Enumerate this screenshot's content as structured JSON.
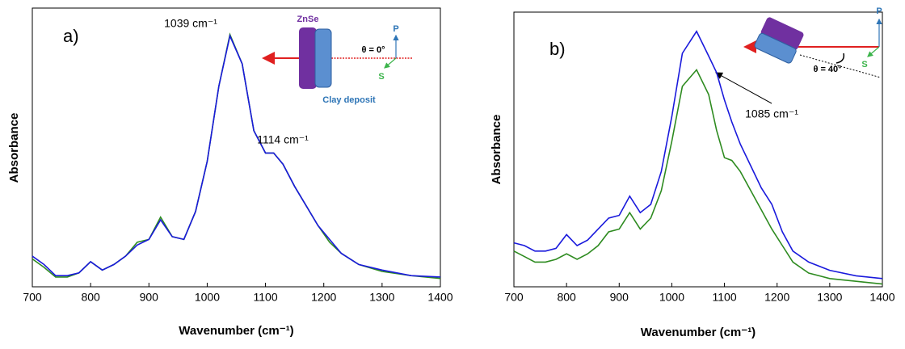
{
  "chart_data": [
    {
      "type": "line",
      "panel_label": "a)",
      "xlabel": "Wavenumber (cm⁻¹)",
      "ylabel": "Absorbance",
      "annotations": [
        "1039 cm⁻¹",
        "1114 cm⁻¹"
      ],
      "inset_labels": [
        "ZnSe",
        "θ = 0°",
        "P",
        "S",
        "Clay deposit"
      ],
      "x": [
        700,
        720,
        740,
        760,
        780,
        800,
        820,
        840,
        860,
        880,
        900,
        920,
        940,
        960,
        980,
        1000,
        1020,
        1039,
        1060,
        1080,
        1100,
        1114,
        1130,
        1150,
        1170,
        1190,
        1210,
        1230,
        1260,
        1300,
        1350,
        1400
      ],
      "xlim": [
        700,
        1400
      ],
      "xticks": [
        700,
        800,
        900,
        1000,
        1100,
        1200,
        1300,
        1400
      ],
      "ylim": [
        0,
        1
      ],
      "series": [
        {
          "color": "#2e8b20",
          "values": [
            0.1,
            0.07,
            0.035,
            0.035,
            0.05,
            0.09,
            0.06,
            0.08,
            0.11,
            0.16,
            0.17,
            0.25,
            0.18,
            0.17,
            0.27,
            0.45,
            0.72,
            0.905,
            0.8,
            0.56,
            0.48,
            0.48,
            0.44,
            0.36,
            0.29,
            0.22,
            0.16,
            0.12,
            0.08,
            0.055,
            0.04,
            0.03
          ]
        },
        {
          "color": "#1a1adc",
          "values": [
            0.11,
            0.08,
            0.04,
            0.04,
            0.05,
            0.09,
            0.06,
            0.08,
            0.11,
            0.15,
            0.17,
            0.24,
            0.18,
            0.17,
            0.27,
            0.45,
            0.72,
            0.9,
            0.8,
            0.56,
            0.48,
            0.48,
            0.44,
            0.36,
            0.29,
            0.22,
            0.17,
            0.12,
            0.08,
            0.06,
            0.04,
            0.035
          ]
        }
      ]
    },
    {
      "type": "line",
      "panel_label": "b)",
      "xlabel": "Wavenumber (cm⁻¹)",
      "ylabel": "Absorbance",
      "annotations": [
        "1085 cm⁻¹"
      ],
      "inset_labels": [
        "θ = 40°",
        "P",
        "S"
      ],
      "x": [
        700,
        720,
        740,
        760,
        780,
        800,
        820,
        840,
        860,
        880,
        900,
        920,
        940,
        960,
        980,
        1000,
        1020,
        1047,
        1070,
        1085,
        1100,
        1114,
        1130,
        1150,
        1170,
        1190,
        1210,
        1230,
        1260,
        1300,
        1350,
        1400
      ],
      "xlim": [
        700,
        1400
      ],
      "xticks": [
        700,
        800,
        900,
        1000,
        1100,
        1200,
        1300,
        1400
      ],
      "ylim": [
        0,
        1
      ],
      "series": [
        {
          "color": "#2e8b20",
          "values": [
            0.13,
            0.11,
            0.09,
            0.09,
            0.1,
            0.12,
            0.1,
            0.12,
            0.15,
            0.2,
            0.21,
            0.27,
            0.21,
            0.25,
            0.35,
            0.53,
            0.73,
            0.79,
            0.7,
            0.57,
            0.47,
            0.46,
            0.42,
            0.35,
            0.28,
            0.21,
            0.15,
            0.09,
            0.05,
            0.03,
            0.02,
            0.01
          ]
        },
        {
          "color": "#1a1adc",
          "values": [
            0.16,
            0.15,
            0.13,
            0.13,
            0.14,
            0.19,
            0.15,
            0.17,
            0.21,
            0.25,
            0.26,
            0.33,
            0.27,
            0.3,
            0.42,
            0.62,
            0.85,
            0.93,
            0.84,
            0.78,
            0.68,
            0.6,
            0.52,
            0.44,
            0.36,
            0.3,
            0.2,
            0.13,
            0.09,
            0.06,
            0.04,
            0.03
          ]
        }
      ]
    }
  ]
}
